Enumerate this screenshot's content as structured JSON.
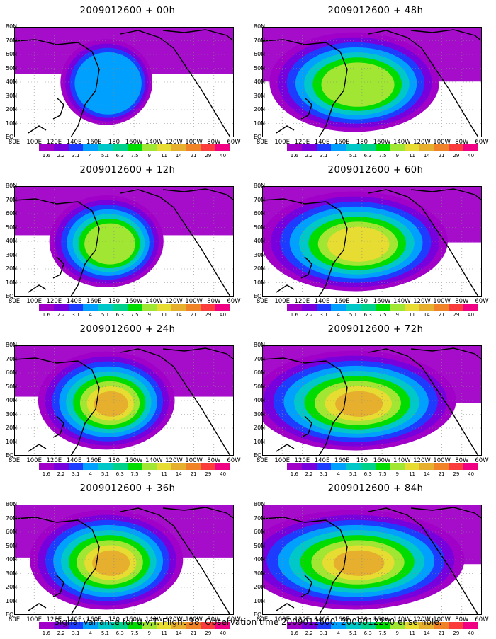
{
  "panels": [
    {
      "title": "2009012600  + 00h",
      "intensity": 0.3,
      "spread": 0.75
    },
    {
      "title": "2009012600  + 48h",
      "intensity": 0.68,
      "spread": 1.45
    },
    {
      "title": "2009012600  + 12h",
      "intensity": 0.62,
      "spread": 0.95
    },
    {
      "title": "2009012600  + 60h",
      "intensity": 0.74,
      "spread": 1.6
    },
    {
      "title": "2009012600  + 24h",
      "intensity": 0.8,
      "spread": 1.15
    },
    {
      "title": "2009012600  + 72h",
      "intensity": 0.8,
      "spread": 1.75
    },
    {
      "title": "2009012600  + 36h",
      "intensity": 0.85,
      "spread": 1.3
    },
    {
      "title": "2009012600  + 84h",
      "intensity": 0.86,
      "spread": 1.9
    }
  ],
  "lat_labels": [
    "80N",
    "70N",
    "60N",
    "50N",
    "40N",
    "30N",
    "20N",
    "10N",
    "EQ"
  ],
  "lon_labels": [
    "80E",
    "100E",
    "120E",
    "140E",
    "160E",
    "180",
    "160W",
    "140W",
    "120W",
    "100W",
    "80W",
    "60W"
  ],
  "colorbar": {
    "labels": [
      "1.6",
      "2.2",
      "3.1",
      "4",
      "5.1",
      "6.3",
      "7.5",
      "9",
      "11",
      "14",
      "21",
      "29",
      "40"
    ],
    "colors": [
      "#a000c8",
      "#7800dc",
      "#1e3cff",
      "#00a0ff",
      "#00c8c8",
      "#00d28c",
      "#00dc00",
      "#a0e632",
      "#e6dc32",
      "#e6af2d",
      "#f08228",
      "#fa3c3c",
      "#f00082"
    ]
  },
  "footer": "Signal Variance for u,v,T. Flight 38. Observation time 2009012600. 2009012200 ensemble."
}
